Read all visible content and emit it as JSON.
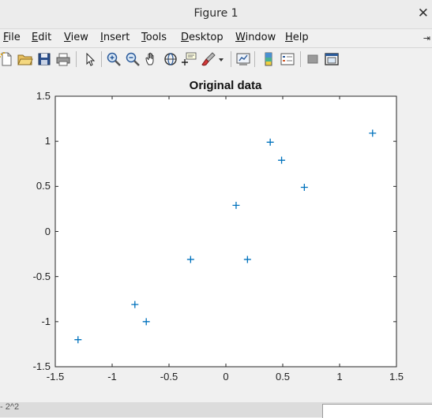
{
  "window": {
    "title": "Figure 1",
    "close_glyph": "✕"
  },
  "menubar": {
    "items": [
      {
        "key": "F",
        "rest": "ile"
      },
      {
        "key": "E",
        "rest": "dit"
      },
      {
        "key": "V",
        "rest": "iew"
      },
      {
        "key": "I",
        "rest": "nsert"
      },
      {
        "key": "T",
        "rest": "ools"
      },
      {
        "key": "D",
        "rest": "esktop"
      },
      {
        "key": "W",
        "rest": "indow"
      },
      {
        "key": "H",
        "rest": "elp"
      }
    ],
    "dock_glyph": "⇥"
  },
  "toolbar": {
    "icons": [
      "new-figure-icon",
      "open-file-icon",
      "save-icon",
      "print-icon",
      "edit-plot-icon",
      "zoom-in-icon",
      "zoom-out-icon",
      "pan-icon",
      "rotate-3d-icon",
      "data-cursor-icon",
      "brush-icon",
      "brush-dropdown-icon",
      "link-plot-icon",
      "insert-colorbar-icon",
      "insert-legend-icon",
      "hide-plot-tools-icon",
      "show-plot-tools-icon"
    ]
  },
  "chart_data": {
    "type": "scatter",
    "title": "Original data",
    "marker": "+",
    "marker_color": "#0072bd",
    "xlim": [
      -1.5,
      1.5
    ],
    "ylim": [
      -1.5,
      1.5
    ],
    "xticks": [
      "-1.5",
      "-1",
      "-0.5",
      "0",
      "0.5",
      "1",
      "1.5"
    ],
    "yticks": [
      "-1.5",
      "-1",
      "-0.5",
      "0",
      "0.5",
      "1",
      "1.5"
    ],
    "grid": false,
    "points": [
      {
        "x": -1.3,
        "y": -1.2
      },
      {
        "x": -0.8,
        "y": -0.81
      },
      {
        "x": -0.7,
        "y": -1.0
      },
      {
        "x": -0.31,
        "y": -0.31
      },
      {
        "x": 0.09,
        "y": 0.29
      },
      {
        "x": 0.19,
        "y": -0.31
      },
      {
        "x": 0.39,
        "y": 0.99
      },
      {
        "x": 0.49,
        "y": 0.79
      },
      {
        "x": 0.69,
        "y": 0.49
      },
      {
        "x": 1.29,
        "y": 1.09
      }
    ]
  },
  "statusbar": {
    "fragment": "- 2^2"
  }
}
